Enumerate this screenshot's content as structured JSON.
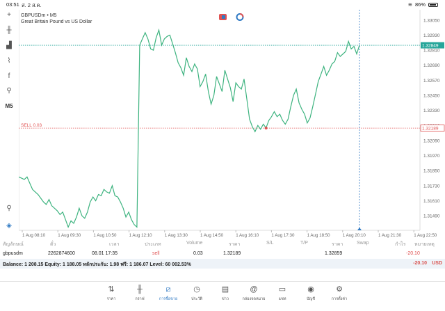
{
  "status_bar": {
    "time": "03:51",
    "date": "ส. 2 ส.ค.",
    "battery": "86%"
  },
  "toolbar": {
    "items": [
      {
        "name": "crosshair-icon",
        "glyph": "+"
      },
      {
        "name": "candles-icon",
        "glyph": "╫"
      },
      {
        "name": "indicators-icon",
        "glyph": "▟"
      },
      {
        "name": "trend-icon",
        "glyph": "⌇"
      },
      {
        "name": "function-icon",
        "glyph": "f"
      },
      {
        "name": "objects-icon",
        "glyph": "⚲"
      },
      {
        "name": "timeframe-m5",
        "glyph": "M5"
      }
    ],
    "bottom_icons": [
      "search-icon",
      "depth-icon"
    ]
  },
  "chart": {
    "symbol": "GBPUSDm • M5",
    "description": "Great Britain Pound vs US Dollar",
    "sell_label": "SELL 0.03",
    "current_price": "1.32849",
    "entry_price": "1.32189",
    "colors": {
      "line": "#3db37f",
      "current": "#26a69a",
      "entry": "#e05252",
      "cursor": "#2f79c3"
    }
  },
  "chart_data": {
    "type": "line",
    "y_ticks": [
      "1.33050",
      "1.32930",
      "1.32810",
      "1.32690",
      "1.32570",
      "1.32450",
      "1.32330",
      "1.32210",
      "1.32090",
      "1.31970",
      "1.31850",
      "1.31730",
      "1.31610",
      "1.31490"
    ],
    "ylim": [
      1.3138,
      1.3311
    ],
    "x_ticks": [
      "1 Aug 08:10",
      "1 Aug 09:30",
      "1 Aug 10:50",
      "1 Aug 12:10",
      "1 Aug 13:30",
      "1 Aug 14:50",
      "1 Aug 16:10",
      "1 Aug 17:30",
      "1 Aug 18:50",
      "1 Aug 20:10",
      "1 Aug 21:30",
      "1 Aug 22:50"
    ],
    "series": [
      {
        "values": [
          1.318,
          1.3179,
          1.3178,
          1.318,
          1.3175,
          1.317,
          1.3168,
          1.3166,
          1.3163,
          1.316,
          1.3158,
          1.3162,
          1.3157,
          1.3155,
          1.3153,
          1.315,
          1.3152,
          1.3146,
          1.314,
          1.3145,
          1.3143,
          1.3148,
          1.3155,
          1.3149,
          1.3147,
          1.3152,
          1.316,
          1.3164,
          1.3161,
          1.3166,
          1.3165,
          1.317,
          1.3168,
          1.3167,
          1.3173,
          1.3165,
          1.3164,
          1.316,
          1.3155,
          1.3148,
          1.3152,
          1.3146,
          1.3142,
          1.314,
          1.3285,
          1.329,
          1.3295,
          1.329,
          1.3282,
          1.3281,
          1.3291,
          1.3297,
          1.3285,
          1.329,
          1.3292,
          1.3293,
          1.3286,
          1.3279,
          1.3271,
          1.3267,
          1.3261,
          1.3275,
          1.3268,
          1.3264,
          1.327,
          1.3266,
          1.3252,
          1.3256,
          1.3262,
          1.3248,
          1.3238,
          1.3245,
          1.326,
          1.3254,
          1.3248,
          1.3265,
          1.3258,
          1.3251,
          1.324,
          1.3255,
          1.3252,
          1.325,
          1.3258,
          1.3242,
          1.3226,
          1.322,
          1.3216,
          1.3221,
          1.3218,
          1.3222,
          1.3219,
          1.3225,
          1.3228,
          1.3232,
          1.3228,
          1.323,
          1.3225,
          1.3222,
          1.3226,
          1.3236,
          1.3245,
          1.325,
          1.3239,
          1.3234,
          1.323,
          1.3223,
          1.3227,
          1.3236,
          1.3246,
          1.3256,
          1.3262,
          1.3268,
          1.3261,
          1.3265,
          1.327,
          1.3272,
          1.3279,
          1.3276,
          1.3278,
          1.328,
          1.3288,
          1.3282,
          1.3284,
          1.3278,
          1.3285
        ]
      }
    ]
  },
  "table": {
    "headers": [
      "สัญลักษณ์",
      "ตั๋ว",
      "เวลา",
      "ประเภท",
      "Volume",
      "ราคา",
      "S/L",
      "T/P",
      "ราคา",
      "Swap",
      "กำไร",
      "หมายเหตุ"
    ],
    "rows": [
      {
        "symbol": "gbpusdm",
        "ticket": "2262874600",
        "time": "08.01 17:35",
        "type": "sell",
        "volume": "0.03",
        "price": "1.32189",
        "sl": "",
        "tp": "",
        "current": "1.32859",
        "swap": "",
        "profit": "-20.10",
        "comment": ""
      }
    ]
  },
  "balance": {
    "text": "Balance: 1 208.15 Equity: 1 188.05 หลักประกัน: 1.98 ฟรี: 1 186.07 Level: 60 002.53%",
    "profit": "-20.10",
    "currency": "USD"
  },
  "nav": {
    "items": [
      {
        "label": "ราคา",
        "icon": "quotes-icon",
        "glyph": "⇅"
      },
      {
        "label": "กราฟ",
        "icon": "chart-bars-icon",
        "glyph": "╫"
      },
      {
        "label": "การซื้อขาย",
        "icon": "trade-icon",
        "glyph": "⧄"
      },
      {
        "label": "ประวัติ",
        "icon": "history-icon",
        "glyph": "◷"
      },
      {
        "label": "ข่าว",
        "icon": "news-icon",
        "glyph": "▤"
      },
      {
        "label": "กล่องจดหมาย",
        "icon": "mail-icon",
        "glyph": "@"
      },
      {
        "label": "แชท",
        "icon": "chat-icon",
        "glyph": "▭"
      },
      {
        "label": "บัญชี",
        "icon": "account-icon",
        "glyph": "◉"
      },
      {
        "label": "การตั้งค่า",
        "icon": "settings-icon",
        "glyph": "⚙"
      }
    ],
    "active_index": 2
  }
}
